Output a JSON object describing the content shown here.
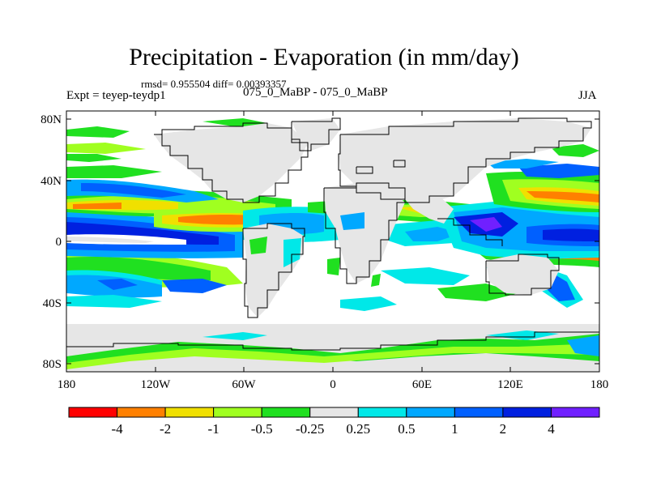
{
  "title": "Precipitation - Evaporation (in mm/day)",
  "stats_line": "rmsd= 0.955504 diff= 0.00393357",
  "left_label": "Expt = teyep-teydp1",
  "center_label": "075_0_MaBP - 075_0_MaBP",
  "right_label": "JJA",
  "lat_axis_labels": [
    "80N",
    "40N",
    "0",
    "40S",
    "80S"
  ],
  "lon_axis_labels": [
    "180",
    "120W",
    "60W",
    "0",
    "60E",
    "120E",
    "180"
  ],
  "colorbar": {
    "levels": [
      "-4",
      "-2",
      "-1",
      "-0.5",
      "-0.25",
      "0.25",
      "0.5",
      "1",
      "2",
      "4"
    ],
    "colors": [
      "#ff0000",
      "#ff8000",
      "#f0e000",
      "#a0ff20",
      "#20e020",
      "#e6e6e6",
      "#00e8e8",
      "#00a8ff",
      "#0060ff",
      "#0020e0",
      "#7020ff"
    ]
  },
  "colors": {
    "land": "#e6e6e6",
    "coastline": "#000000"
  }
}
